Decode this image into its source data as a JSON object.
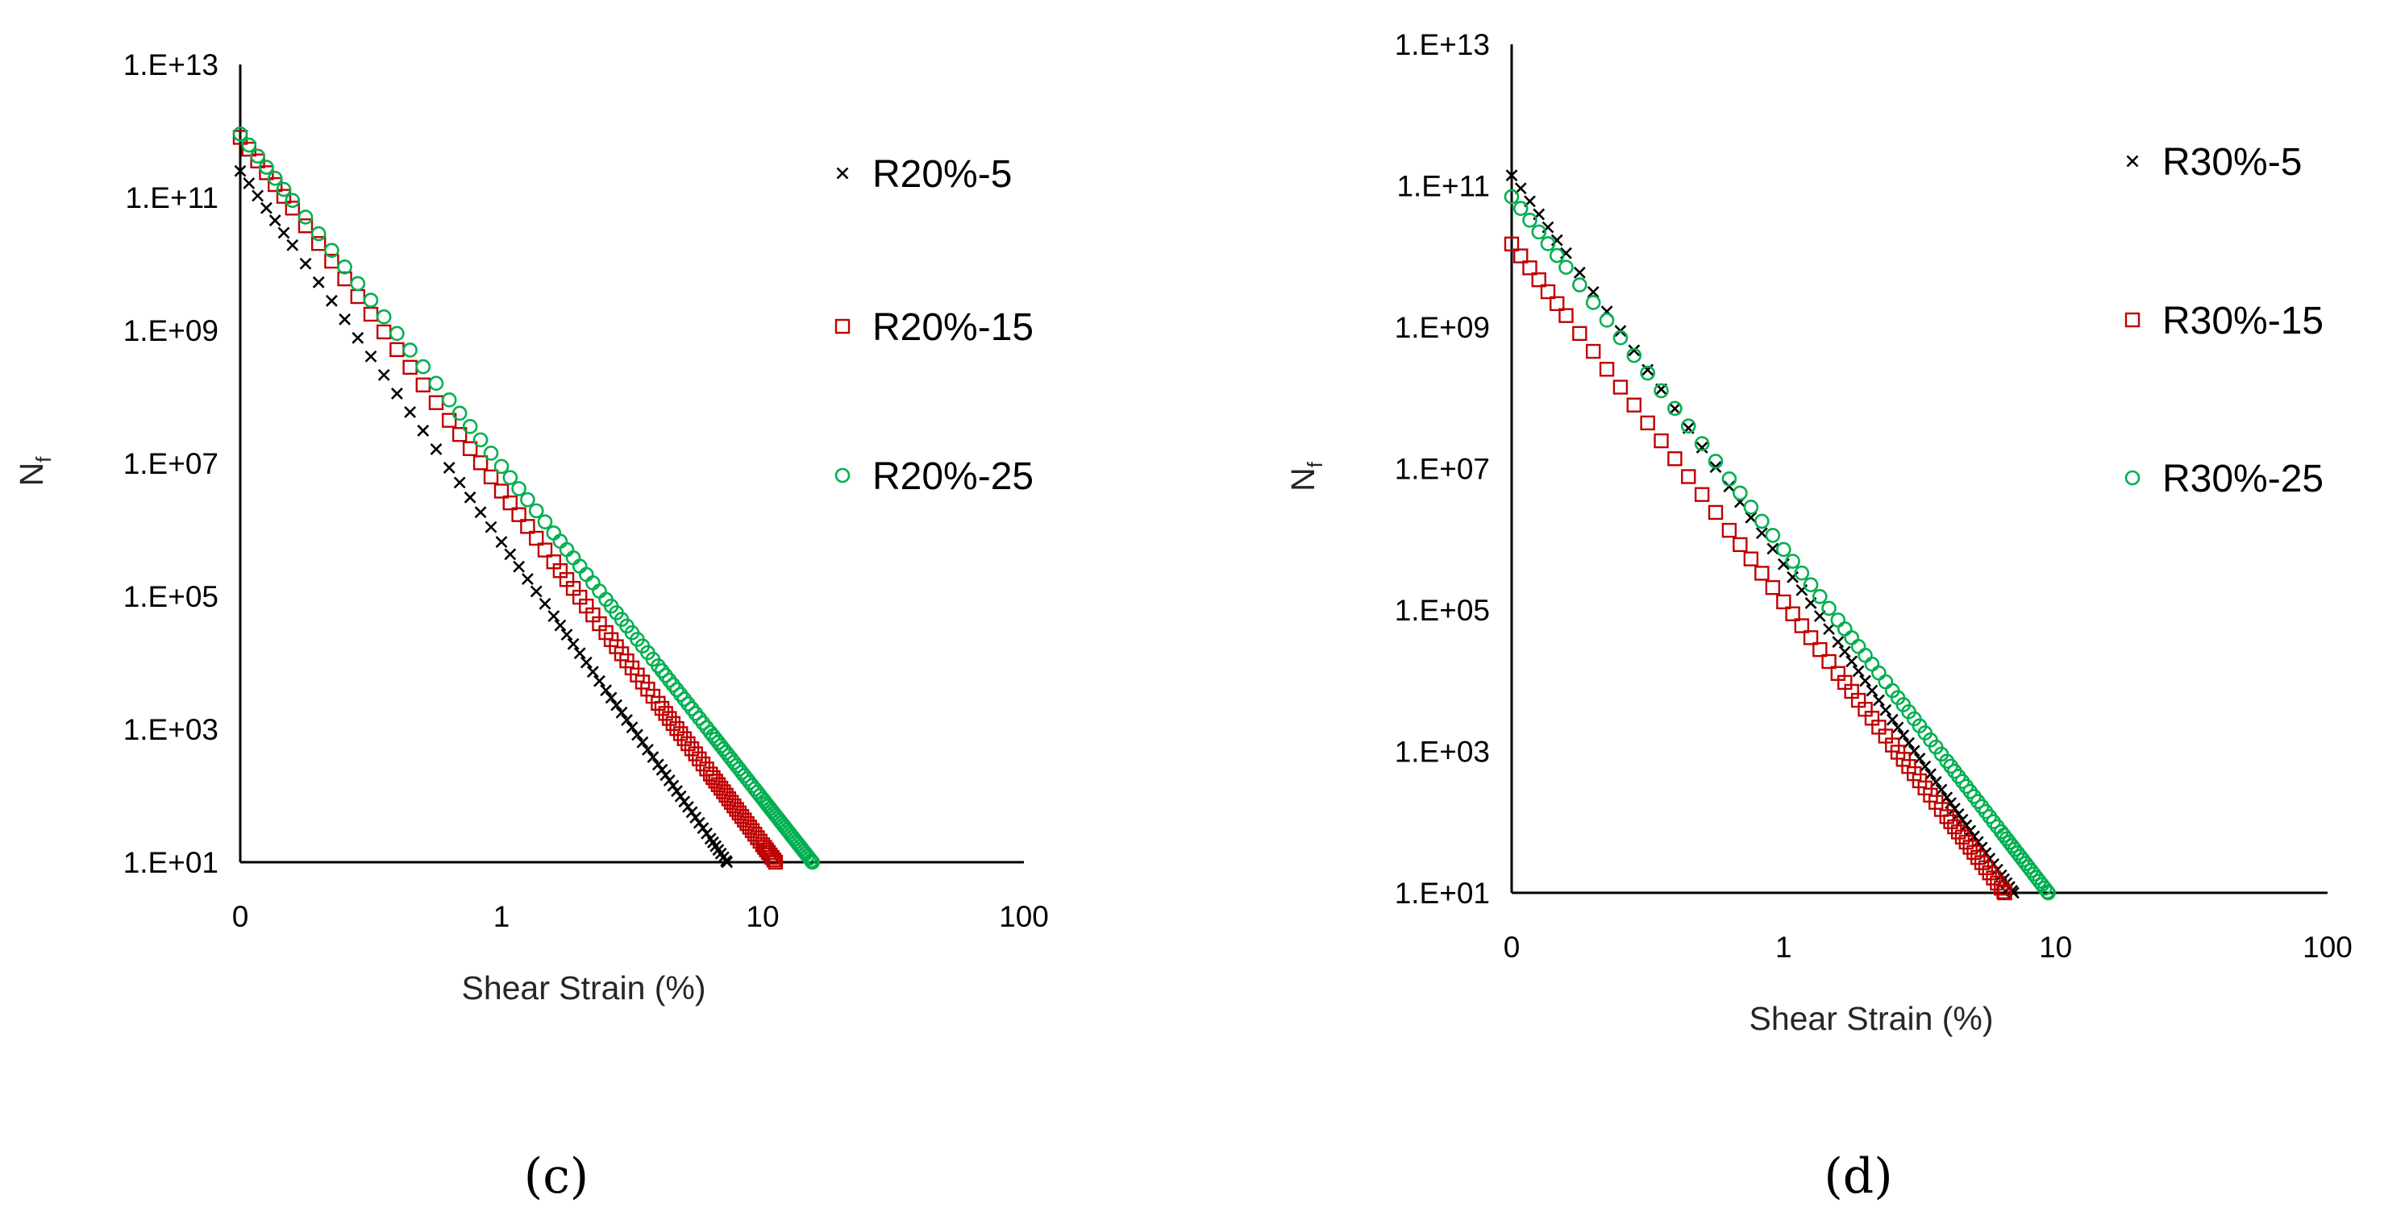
{
  "colors": {
    "R5": "#000000",
    "R15": "#c00000",
    "R25": "#00b050"
  },
  "chart_data": [
    {
      "type": "scatter",
      "panel_label": "(c)",
      "xlabel": "Shear Strain (%)",
      "ylabel": "N",
      "ylabel_sub": "f",
      "x_scale": "log",
      "y_scale": "log",
      "xlim": [
        0.1,
        100
      ],
      "ylim": [
        10,
        10000000000000
      ],
      "x_ticks": [
        {
          "value": 0.1,
          "label": "0"
        },
        {
          "value": 1,
          "label": "1"
        },
        {
          "value": 10,
          "label": "10"
        },
        {
          "value": 100,
          "label": "100"
        }
      ],
      "y_ticks": [
        {
          "value": 10,
          "label": "1.E+01"
        },
        {
          "value": 1000,
          "label": "1.E+03"
        },
        {
          "value": 100000,
          "label": "1.E+05"
        },
        {
          "value": 10000000,
          "label": "1.E+07"
        },
        {
          "value": 1000000000,
          "label": "1.E+09"
        },
        {
          "value": 100000000000,
          "label": "1.E+11"
        },
        {
          "value": 10000000000000,
          "label": "1.E+13"
        }
      ],
      "series": [
        {
          "name": "R20%-5",
          "marker": "x",
          "color_key": "R5",
          "x_start": 0.1,
          "x_end": 7.3,
          "y_at_start": 250000000000,
          "y_at_end": 10
        },
        {
          "name": "R20%-15",
          "marker": "square",
          "color_key": "R15",
          "x_start": 0.1,
          "x_end": 11.2,
          "y_at_start": 800000000000,
          "y_at_end": 10
        },
        {
          "name": "R20%-25",
          "marker": "circle",
          "color_key": "R25",
          "x_start": 0.1,
          "x_end": 15.5,
          "y_at_start": 900000000000,
          "y_at_end": 10
        }
      ]
    },
    {
      "type": "scatter",
      "panel_label": "(d)",
      "xlabel": "Shear Strain (%)",
      "ylabel": "N",
      "ylabel_sub": "f",
      "x_scale": "log",
      "y_scale": "log",
      "xlim": [
        0.1,
        100
      ],
      "ylim": [
        10,
        10000000000000
      ],
      "x_ticks": [
        {
          "value": 0.1,
          "label": "0"
        },
        {
          "value": 1,
          "label": "1"
        },
        {
          "value": 10,
          "label": "10"
        },
        {
          "value": 100,
          "label": "100"
        }
      ],
      "y_ticks": [
        {
          "value": 10,
          "label": "1.E+01"
        },
        {
          "value": 1000,
          "label": "1.E+03"
        },
        {
          "value": 100000,
          "label": "1.E+05"
        },
        {
          "value": 10000000,
          "label": "1.E+07"
        },
        {
          "value": 1000000000,
          "label": "1.E+09"
        },
        {
          "value": 100000000000,
          "label": "1.E+11"
        },
        {
          "value": 10000000000000,
          "label": "1.E+13"
        }
      ],
      "series": [
        {
          "name": "R30%-5",
          "marker": "x",
          "color_key": "R5",
          "x_start": 0.1,
          "x_end": 7.0,
          "y_at_start": 140000000000,
          "y_at_end": 10
        },
        {
          "name": "R30%-15",
          "marker": "square",
          "color_key": "R15",
          "x_start": 0.1,
          "x_end": 6.5,
          "y_at_start": 15000000000,
          "y_at_end": 10
        },
        {
          "name": "R30%-25",
          "marker": "circle",
          "color_key": "R25",
          "x_start": 0.1,
          "x_end": 9.4,
          "y_at_start": 70000000000,
          "y_at_end": 10
        }
      ]
    }
  ]
}
